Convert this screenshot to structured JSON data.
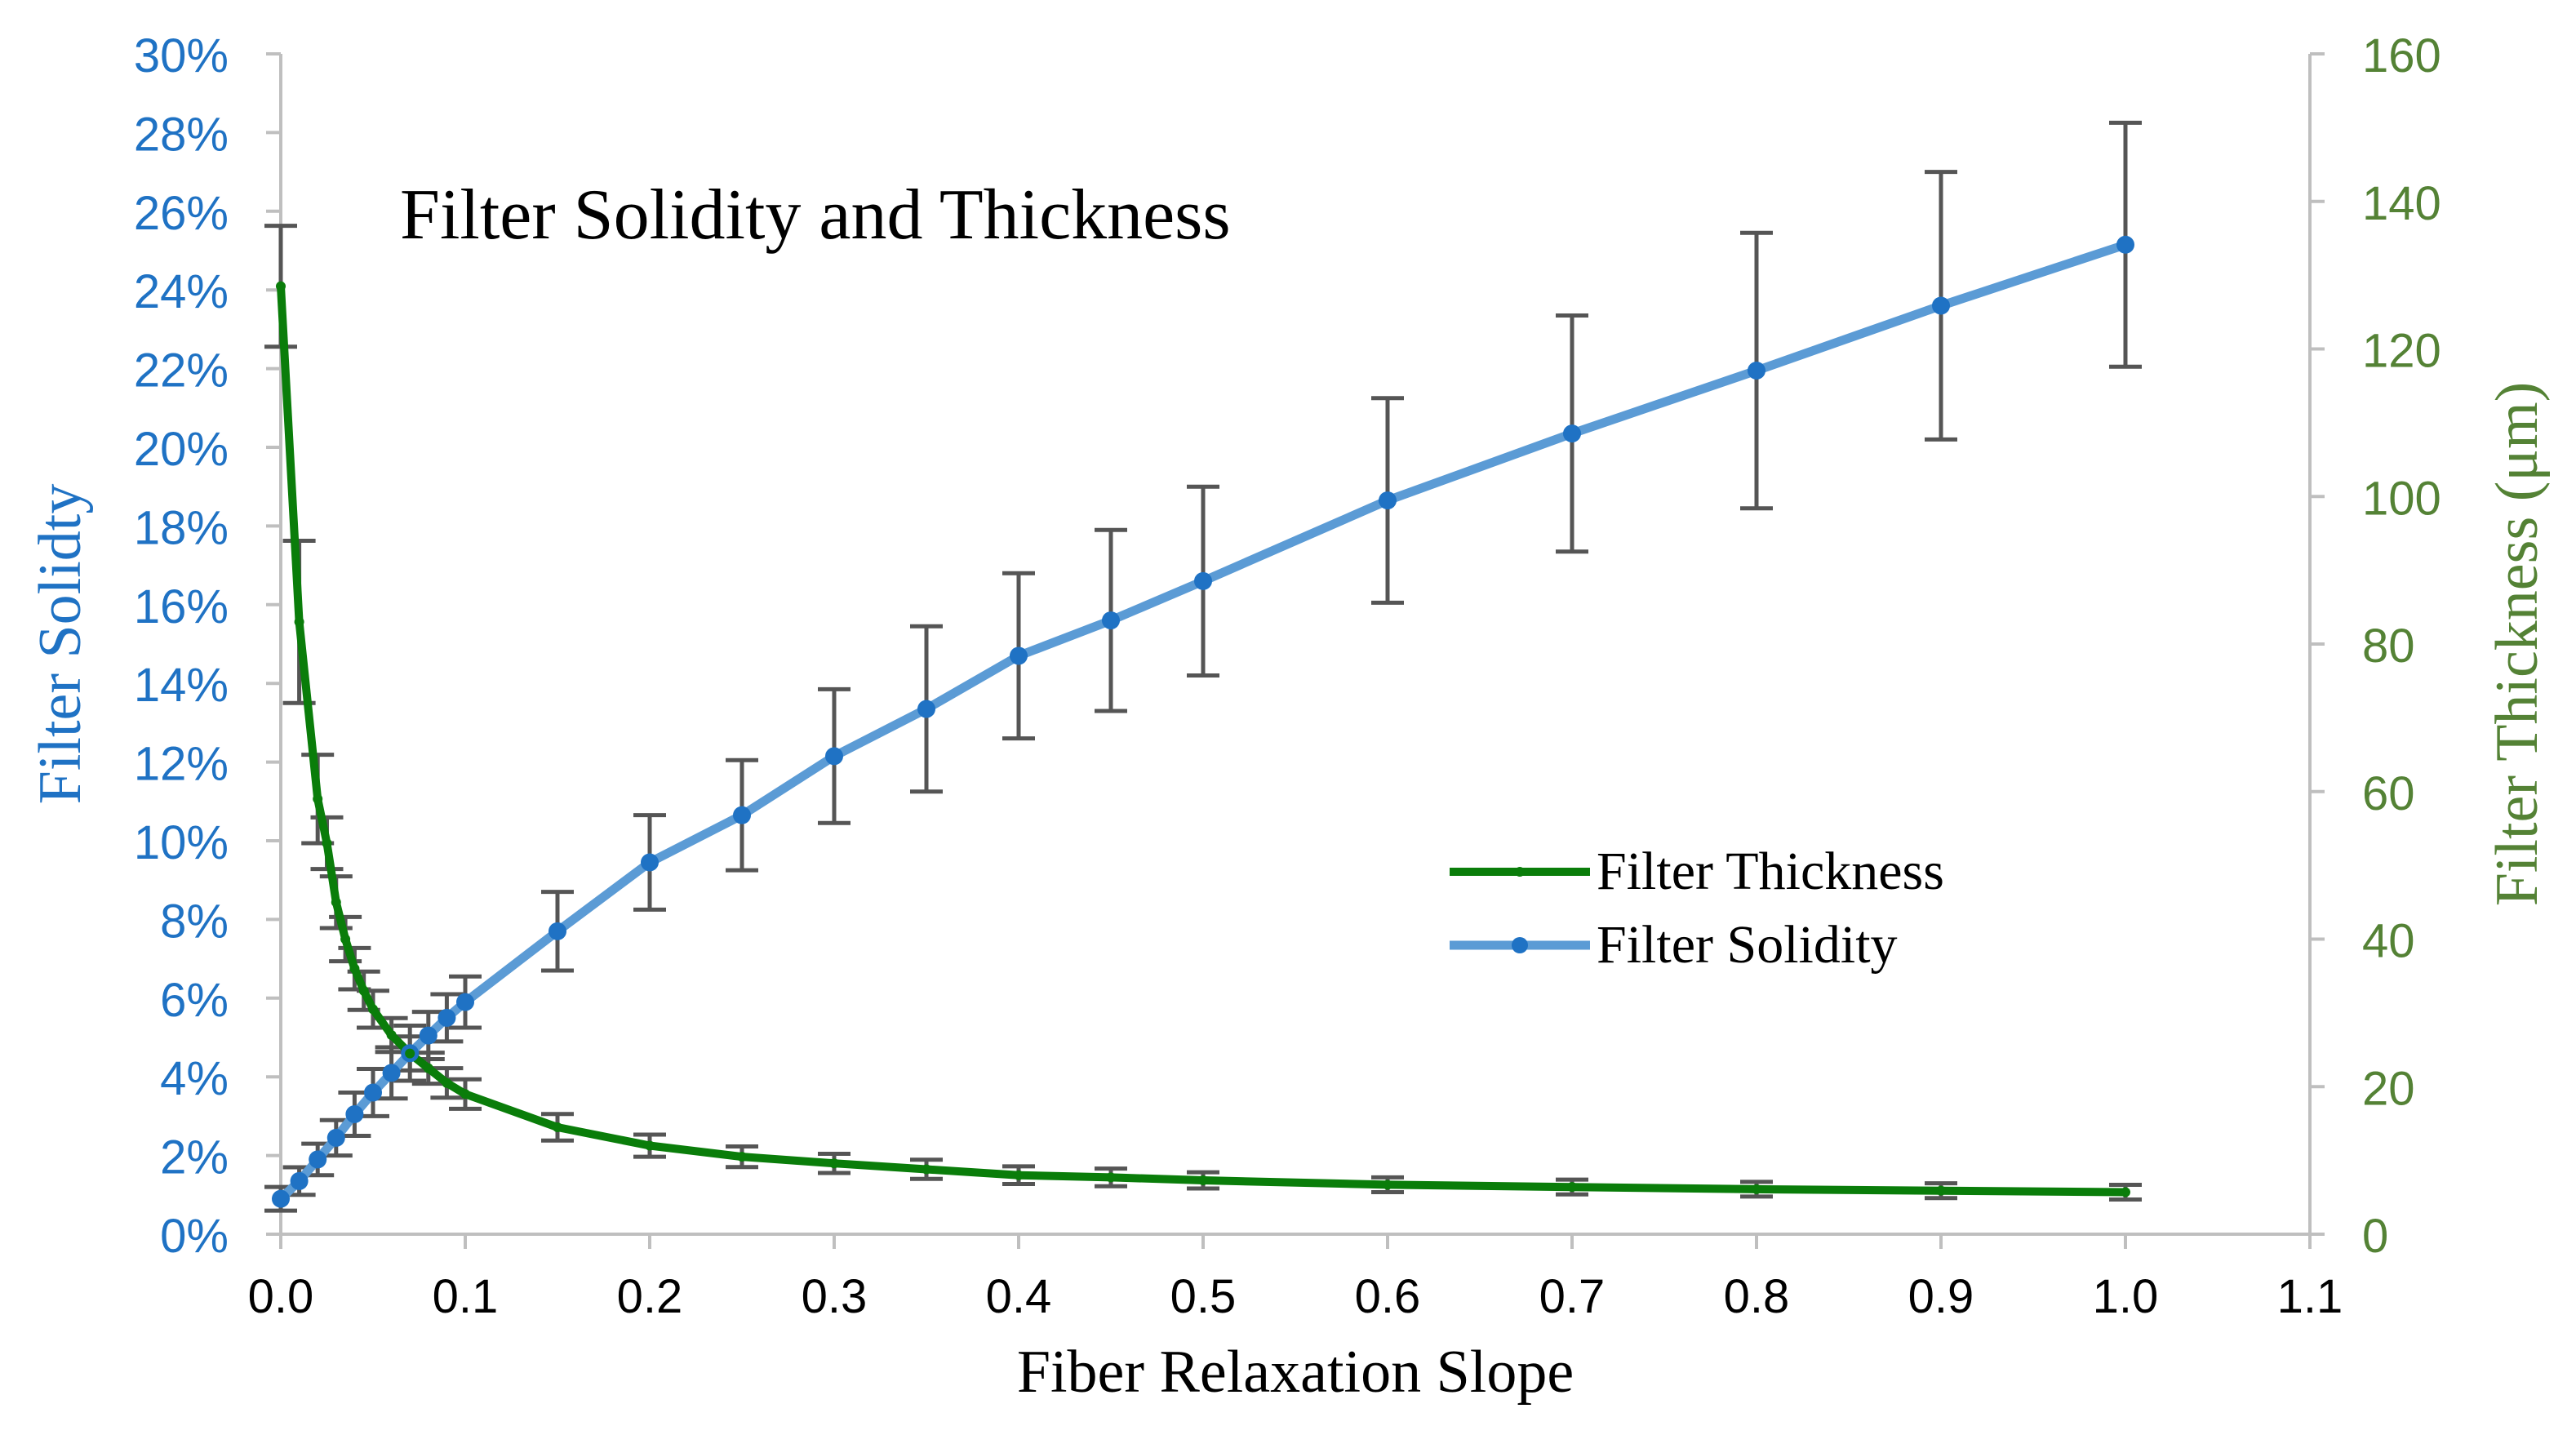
{
  "chart_data": {
    "type": "line",
    "title": "Filter Solidity and Thickness",
    "xlabel": "Fiber Relaxation Slope",
    "ylabel_left": "Filter Solidty",
    "ylabel_right": "Filter Thickness (μm)",
    "xlim": [
      0.0,
      1.1
    ],
    "ylim_left": [
      0,
      30
    ],
    "ylim_right": [
      0,
      160
    ],
    "x_ticks": [
      "0.0",
      "0.1",
      "0.2",
      "0.3",
      "0.4",
      "0.5",
      "0.6",
      "0.7",
      "0.8",
      "0.9",
      "1.0",
      "1.1"
    ],
    "y_left_ticks": [
      "0%",
      "2%",
      "4%",
      "6%",
      "8%",
      "10%",
      "12%",
      "14%",
      "16%",
      "18%",
      "20%",
      "22%",
      "24%",
      "26%",
      "28%",
      "30%"
    ],
    "y_right_ticks": [
      "0",
      "20",
      "40",
      "60",
      "80",
      "100",
      "120",
      "140",
      "160"
    ],
    "legend_position": "center-right",
    "colors": {
      "solidity": "#5b9bd5",
      "solidity_marker": "#1f72c4",
      "thickness": "#0a7d0a",
      "left_axis_text": "#1f72c4",
      "right_axis_text": "#548235",
      "error_bar": "#555555",
      "axis_line": "#bfbfbf"
    },
    "series": [
      {
        "name": "Filter Thickness",
        "axis": "right",
        "x": [
          0.0,
          0.01,
          0.02,
          0.025,
          0.03,
          0.035,
          0.04,
          0.045,
          0.05,
          0.06,
          0.07,
          0.08,
          0.09,
          0.1,
          0.15,
          0.2,
          0.25,
          0.3,
          0.35,
          0.4,
          0.45,
          0.5,
          0.6,
          0.7,
          0.8,
          0.9,
          1.0
        ],
        "values": [
          128.5,
          83,
          59,
          53,
          45,
          40,
          36,
          33,
          30.5,
          27,
          24.5,
          22.5,
          20.5,
          19,
          14.5,
          12,
          10.5,
          9.6,
          8.8,
          8.0,
          7.7,
          7.3,
          6.7,
          6.4,
          6.1,
          5.9,
          5.7
        ],
        "errors": [
          8.2,
          11,
          6,
          3.5,
          3.5,
          3,
          2.8,
          2.6,
          2.5,
          2.3,
          2.3,
          2.1,
          2.0,
          2.0,
          1.8,
          1.5,
          1.4,
          1.3,
          1.3,
          1.2,
          1.2,
          1.1,
          1.0,
          1.0,
          1.0,
          1.0,
          1.0
        ]
      },
      {
        "name": "Filter Solidity",
        "axis": "left",
        "x": [
          0.0,
          0.01,
          0.02,
          0.03,
          0.04,
          0.05,
          0.06,
          0.07,
          0.08,
          0.09,
          0.1,
          0.15,
          0.2,
          0.25,
          0.3,
          0.35,
          0.4,
          0.45,
          0.5,
          0.6,
          0.7,
          0.8,
          0.9,
          1.0
        ],
        "values": [
          0.9,
          1.35,
          1.9,
          2.45,
          3.05,
          3.6,
          4.1,
          4.6,
          5.05,
          5.5,
          5.9,
          7.7,
          9.45,
          10.65,
          12.15,
          13.35,
          14.7,
          15.6,
          16.6,
          18.65,
          20.35,
          21.95,
          23.6,
          25.15
        ],
        "errors": [
          0.3,
          0.35,
          0.4,
          0.45,
          0.55,
          0.6,
          0.65,
          0.7,
          0.6,
          0.6,
          0.65,
          1.0,
          1.2,
          1.4,
          1.7,
          2.1,
          2.1,
          2.3,
          2.4,
          2.6,
          3.0,
          3.5,
          3.4,
          3.1
        ]
      }
    ]
  }
}
